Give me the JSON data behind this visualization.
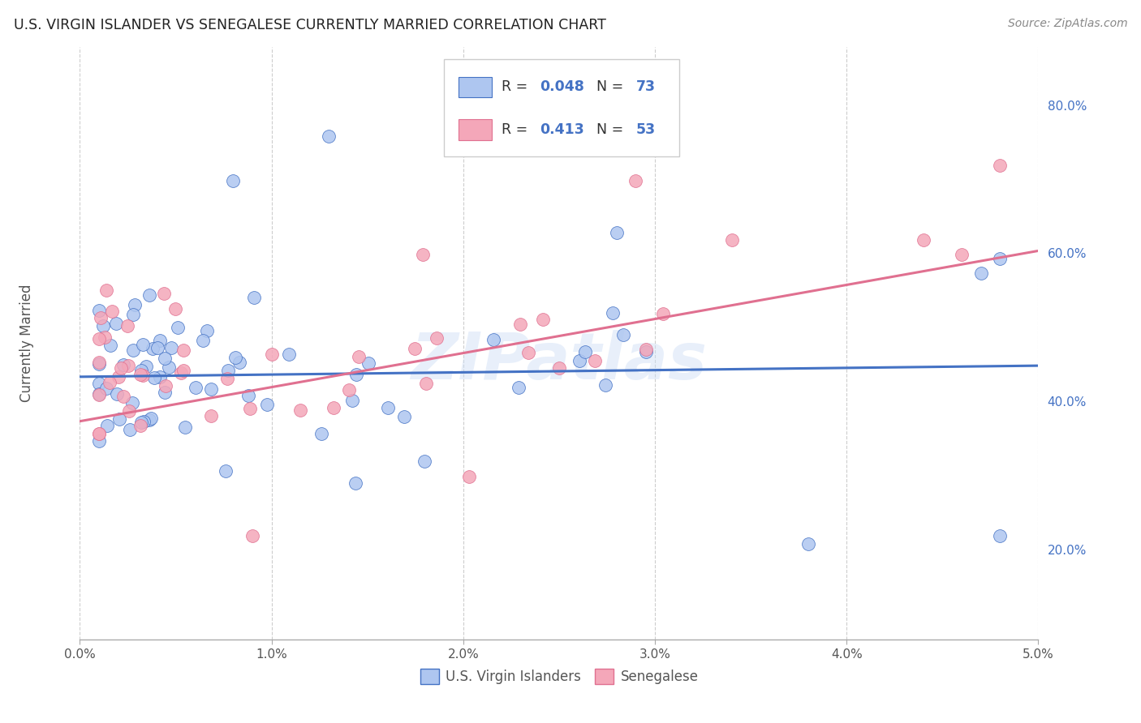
{
  "title": "U.S. VIRGIN ISLANDER VS SENEGALESE CURRENTLY MARRIED CORRELATION CHART",
  "source": "Source: ZipAtlas.com",
  "xlabel_ticks": [
    "0.0%",
    "1.0%",
    "2.0%",
    "3.0%",
    "4.0%",
    "5.0%"
  ],
  "ylabel_label": "Currently Married",
  "xlim": [
    0.0,
    0.05
  ],
  "ylim": [
    0.08,
    0.88
  ],
  "right_ytick_vals": [
    0.2,
    0.4,
    0.6,
    0.8
  ],
  "right_ytick_labels": [
    "20.0%",
    "40.0%",
    "60.0%",
    "80.0%"
  ],
  "blue_line_x": [
    0.0,
    0.05
  ],
  "blue_line_y": [
    0.435,
    0.45
  ],
  "pink_line_x": [
    0.0,
    0.05
  ],
  "pink_line_y": [
    0.375,
    0.605
  ],
  "blue_color": "#4472c4",
  "pink_color": "#e07090",
  "blue_scatter_color": "#aec6f0",
  "pink_scatter_color": "#f4a7b9",
  "watermark": "ZIPatlas",
  "grid_color": "#c8c8c8",
  "background_color": "#ffffff",
  "legend_r_blue": "0.048",
  "legend_n_blue": "73",
  "legend_r_pink": "0.413",
  "legend_n_pink": "53"
}
